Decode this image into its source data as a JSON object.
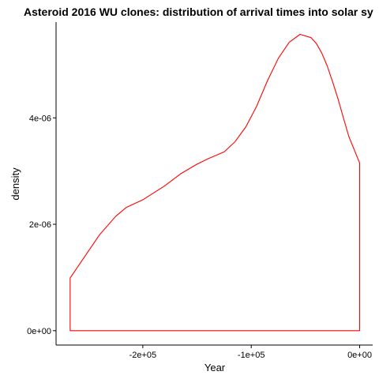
{
  "chart_data": {
    "type": "area",
    "title": "Asteroid 2016 WU clones: distribution of arrival times into solar sy",
    "xlabel": "Year",
    "ylabel": "density",
    "xlim": [
      -280000,
      12000
    ],
    "ylim": [
      -2.7e-07,
      5.8e-06
    ],
    "x_ticks": [
      {
        "value": -200000,
        "label": "-2e+05"
      },
      {
        "value": -100000,
        "label": "-1e+05"
      },
      {
        "value": 0,
        "label": "0e+00"
      }
    ],
    "y_ticks": [
      {
        "value": 0,
        "label": "0e+00"
      },
      {
        "value": 2e-06,
        "label": "2e-06"
      },
      {
        "value": 4e-06,
        "label": "4e-06"
      }
    ],
    "grid": false,
    "series": [
      {
        "color": "#ff0000",
        "fill": "none",
        "x": [
          -267000,
          -255000,
          -240000,
          -225000,
          -215000,
          -200000,
          -180000,
          -165000,
          -150000,
          -140000,
          -125000,
          -115000,
          -105000,
          -95000,
          -85000,
          -75000,
          -65000,
          -55000,
          -45000,
          -40000,
          -35000,
          -30000,
          -25000,
          -20000,
          -15000,
          -10000,
          -5000,
          0
        ],
        "y": [
          9.9e-07,
          1.35e-06,
          1.8e-06,
          2.15e-06,
          2.32e-06,
          2.46e-06,
          2.72e-06,
          2.95e-06,
          3.13e-06,
          3.23e-06,
          3.36e-06,
          3.55e-06,
          3.83e-06,
          4.22e-06,
          4.7e-06,
          5.12e-06,
          5.42e-06,
          5.57e-06,
          5.51e-06,
          5.4e-06,
          5.22e-06,
          4.98e-06,
          4.68e-06,
          4.36e-06,
          4e-06,
          3.65e-06,
          3.4e-06,
          3.15e-06
        ]
      }
    ]
  }
}
